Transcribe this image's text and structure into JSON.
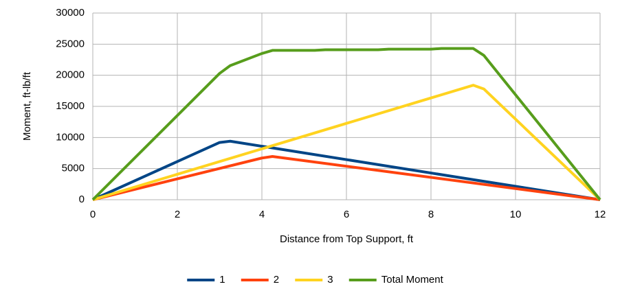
{
  "chart_data": {
    "type": "line",
    "xlabel": "Distance from Top Support, ft",
    "ylabel": "Moment, ft-lb/ft",
    "xlim": [
      0,
      12
    ],
    "xticks": [
      0,
      2,
      4,
      6,
      8,
      10,
      12
    ],
    "ylim": [
      0,
      30000
    ],
    "yticks": [
      0,
      5000,
      10000,
      15000,
      20000,
      25000,
      30000
    ],
    "grid": true,
    "legend": "bottom",
    "series": [
      {
        "name": "1",
        "color": "#004586",
        "x": [
          0,
          3,
          3.25,
          12
        ],
        "values": [
          0,
          9200,
          9400,
          0
        ]
      },
      {
        "name": "2",
        "color": "#ff420e",
        "x": [
          0,
          4,
          4.25,
          12
        ],
        "values": [
          0,
          6700,
          6950,
          0
        ]
      },
      {
        "name": "3",
        "color": "#ffd320",
        "x": [
          0,
          9,
          9.25,
          12
        ],
        "values": [
          0,
          18400,
          17800,
          0
        ]
      },
      {
        "name": "Total Moment",
        "color": "#579d1c",
        "x": [
          0,
          3,
          3.25,
          4,
          4.25,
          5.25,
          5.5,
          6.75,
          7,
          8,
          8.25,
          9,
          9.25,
          12
        ],
        "values": [
          0,
          20300,
          21550,
          23500,
          24000,
          24000,
          24100,
          24100,
          24200,
          24200,
          24300,
          24300,
          23200,
          0
        ]
      }
    ]
  }
}
